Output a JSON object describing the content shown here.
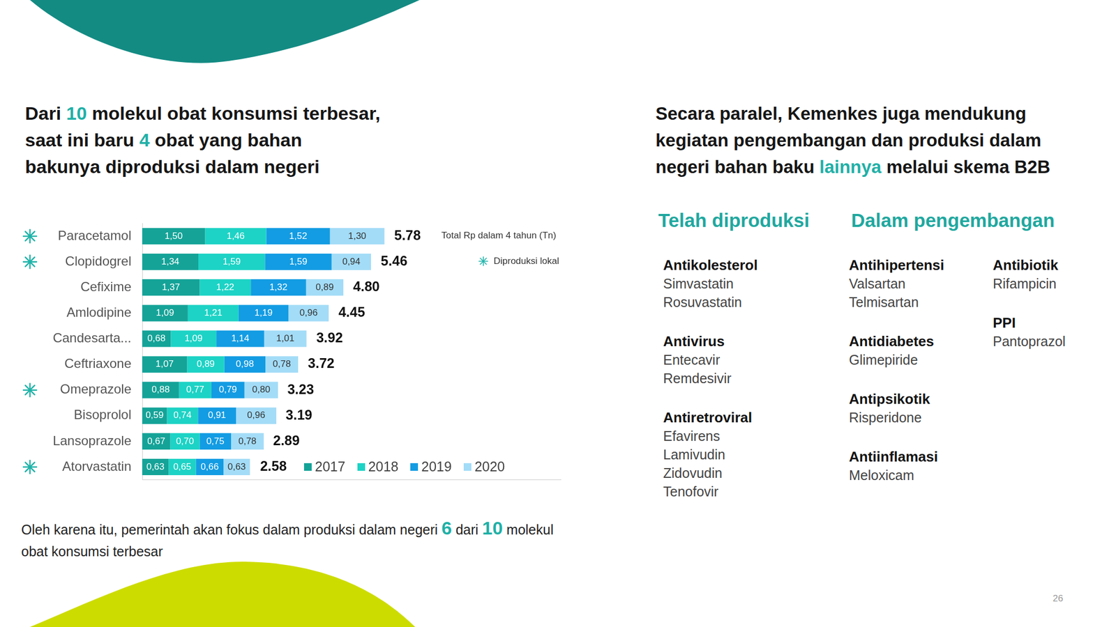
{
  "title_left": [
    [
      {
        "text": "Dari "
      },
      {
        "text": "10",
        "accent": true
      },
      {
        "text": " molekul obat konsumsi terbesar,"
      }
    ],
    [
      {
        "text": "saat ini baru "
      },
      {
        "text": "4",
        "accent": true
      },
      {
        "text": " obat yang bahan"
      }
    ],
    [
      {
        "text": "bakunya diproduksi dalam negeri"
      }
    ]
  ],
  "chart_data": {
    "type": "bar",
    "orientation": "horizontal",
    "stacked": true,
    "data_labels": true,
    "tick_labels": "y",
    "grid": false,
    "legend": "bottom right",
    "categories": [
      "Paracetamol",
      "Clopidogrel",
      "Cefixime",
      "Amlodipine",
      "Candesarta...",
      "Ceftriaxone",
      "Omeprazole",
      "Bisoprolol",
      "Lansoprazole",
      "Atorvastatin"
    ],
    "series": [
      {
        "name": "2017",
        "color": "#15a398",
        "values": [
          1.5,
          1.34,
          1.37,
          1.09,
          0.68,
          1.07,
          0.88,
          0.59,
          0.67,
          0.63
        ],
        "value_labels": [
          "1,50",
          "1,34",
          "1,37",
          "1,09",
          "0,68",
          "1,07",
          "0,88",
          "0,59",
          "0,67",
          "0,63"
        ]
      },
      {
        "name": "2018",
        "color": "#1dd3c5",
        "values": [
          1.46,
          1.59,
          1.22,
          1.21,
          1.09,
          0.89,
          0.77,
          0.74,
          0.7,
          0.65
        ],
        "value_labels": [
          "1,46",
          "1,59",
          "1,22",
          "1,21",
          "1,09",
          "0,89",
          "0,77",
          "0,74",
          "0,70",
          "0,65"
        ]
      },
      {
        "name": "2019",
        "color": "#139ce3",
        "values": [
          1.52,
          1.59,
          1.32,
          1.19,
          1.14,
          0.98,
          0.79,
          0.91,
          0.75,
          0.66
        ],
        "value_labels": [
          "1,52",
          "1,59",
          "1,32",
          "1,19",
          "1,14",
          "0,98",
          "0,79",
          "0,91",
          "0,75",
          "0,66"
        ]
      },
      {
        "name": "2020",
        "color": "#a3dcf7",
        "values": [
          1.3,
          0.94,
          0.89,
          0.96,
          1.01,
          0.78,
          0.8,
          0.96,
          0.78,
          0.63
        ],
        "value_labels": [
          "1,30",
          "0,94",
          "0,89",
          "0,96",
          "1,01",
          "0,78",
          "0,80",
          "0,96",
          "0,78",
          "0,63"
        ]
      }
    ],
    "totals": [
      5.78,
      5.46,
      4.8,
      4.45,
      3.92,
      3.72,
      3.23,
      3.19,
      2.89,
      2.58
    ],
    "total_labels": [
      "5.78",
      "5.46",
      "4.80",
      "4.45",
      "3.92",
      "3.72",
      "3.23",
      "3.19",
      "2.89",
      "2.58"
    ],
    "total_note": "Total Rp dalam 4 tahun (Tn)",
    "local": [
      true,
      true,
      false,
      false,
      false,
      false,
      true,
      false,
      false,
      true
    ],
    "local_label": "Diproduksi lokal",
    "xlim": [
      0,
      10
    ],
    "xticks": []
  },
  "footnote": [
    {
      "text": "Oleh karena itu, pemerintah akan fokus dalam produksi dalam negeri "
    },
    {
      "text": "6",
      "accent": true
    },
    {
      "text": " dari "
    },
    {
      "text": "10",
      "accent": true
    },
    {
      "text": " molekul obat konsumsi terbesar"
    }
  ],
  "title_right": [
    [
      {
        "text": "Secara paralel, Kemenkes juga mendukung"
      }
    ],
    [
      {
        "text": "kegiatan pengembangan dan produksi dalam"
      }
    ],
    [
      {
        "text": "negeri bahan baku "
      },
      {
        "text": "lainnya",
        "accent": true
      },
      {
        "text": " melalui skema B2B"
      }
    ]
  ],
  "right_panel": {
    "produced": {
      "heading": "Telah diproduksi",
      "columns": [
        [
          {
            "class": "Antikolesterol",
            "items": [
              "Simvastatin",
              "Rosuvastatin"
            ]
          },
          {
            "class": "Antivirus",
            "items": [
              "Entecavir",
              "Remdesivir"
            ]
          },
          {
            "class": "Antiretroviral",
            "items": [
              "Efavirens",
              "Lamivudin",
              "Zidovudin",
              "Tenofovir"
            ]
          }
        ]
      ]
    },
    "development": {
      "heading": "Dalam pengembangan",
      "columns": [
        [
          {
            "class": "Antihipertensi",
            "items": [
              "Valsartan",
              "Telmisartan"
            ]
          },
          {
            "class": "Antidiabetes",
            "items": [
              "Glimepiride"
            ]
          },
          {
            "class": "Antipsikotik",
            "items": [
              "Risperidone"
            ]
          },
          {
            "class": "Antiinflamasi",
            "items": [
              "Meloxicam"
            ]
          }
        ],
        [
          {
            "class": "Antibiotik",
            "items": [
              "Rifampicin"
            ]
          },
          {
            "class": "PPI",
            "items": [
              "Pantoprazol"
            ]
          }
        ]
      ]
    }
  },
  "page_number": "26"
}
